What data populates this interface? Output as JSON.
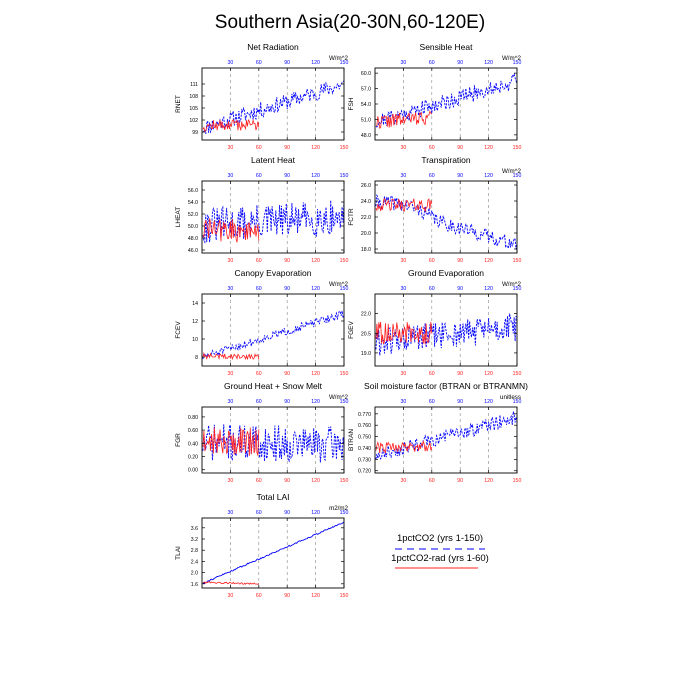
{
  "figure": {
    "title": "Southern Asia(20-30N,60-120E)",
    "colors": {
      "series1": "#0000ff",
      "series2": "#ff2020",
      "frame": "#000000",
      "grid": "#888888"
    }
  },
  "legend": {
    "entries": [
      {
        "label": "1pctCO2 (yrs 1-150)",
        "color": "#0000ff"
      },
      {
        "label": "1pctCO2-rad (yrs 1-60)",
        "color": "#ff2020"
      }
    ]
  },
  "chart_data": [
    {
      "type": "line",
      "title": "Net Radiation",
      "ylabel": "RNET",
      "units": "W/m^2",
      "xlim": [
        0,
        150
      ],
      "xticks": [
        30,
        60,
        90,
        120,
        150
      ],
      "ylim": [
        97,
        115
      ],
      "yticks": [
        99,
        102,
        105,
        108,
        111
      ],
      "ytick_labels": [
        "99",
        "102",
        "105",
        "108",
        "111"
      ],
      "series": [
        {
          "x_range": [
            1,
            150
          ],
          "trend": [
            100.0,
            111.0
          ],
          "amp": 2.0,
          "seed": 11,
          "dashed": true
        },
        {
          "x_range": [
            1,
            60
          ],
          "trend": [
            100.5,
            101.0
          ],
          "amp": 1.5,
          "seed": 12,
          "dashed": false
        }
      ]
    },
    {
      "type": "line",
      "title": "Sensible Heat",
      "ylabel": "FSH",
      "units": "W/m^2",
      "xlim": [
        0,
        150
      ],
      "xticks": [
        30,
        60,
        90,
        120,
        150
      ],
      "ylim": [
        47,
        61
      ],
      "yticks": [
        48,
        51,
        54,
        57,
        60
      ],
      "ytick_labels": [
        "48.0",
        "51.0",
        "54.0",
        "57.0",
        "60.0"
      ],
      "series": [
        {
          "x_range": [
            1,
            150
          ],
          "trend": [
            50.5,
            58.5
          ],
          "amp": 1.6,
          "seed": 21,
          "dashed": true
        },
        {
          "x_range": [
            1,
            60
          ],
          "trend": [
            50.5,
            51.5
          ],
          "amp": 1.4,
          "seed": 22,
          "dashed": false
        }
      ]
    },
    {
      "type": "line",
      "title": "Latent Heat",
      "ylabel": "LHEAT",
      "units": "",
      "xlim": [
        0,
        150
      ],
      "xticks": [
        30,
        60,
        90,
        120,
        150
      ],
      "ylim": [
        45.5,
        57.5
      ],
      "yticks": [
        46,
        48,
        50,
        52,
        54,
        56
      ],
      "ytick_labels": [
        "46.0",
        "48.0",
        "50.0",
        "52.0",
        "54.0",
        "56.0"
      ],
      "series": [
        {
          "x_range": [
            1,
            150
          ],
          "trend": [
            50.0,
            51.5
          ],
          "amp": 3.0,
          "seed": 31,
          "dashed": true
        },
        {
          "x_range": [
            1,
            60
          ],
          "trend": [
            49.5,
            49.0
          ],
          "amp": 2.0,
          "seed": 32,
          "dashed": false
        }
      ]
    },
    {
      "type": "line",
      "title": "Transpiration",
      "ylabel": "FCTR",
      "units": "W/m^2",
      "xlim": [
        0,
        150
      ],
      "xticks": [
        30,
        60,
        90,
        120,
        150
      ],
      "ylim": [
        17.5,
        26.5
      ],
      "yticks": [
        18,
        20,
        22,
        24,
        26
      ],
      "ytick_labels": [
        "18.0",
        "20.0",
        "22.0",
        "24.0",
        "26.0"
      ],
      "series": [
        {
          "x_range": [
            1,
            150
          ],
          "trend": [
            23.8,
            18.5
          ],
          "amp": 0.9,
          "seed": 41,
          "dashed": true,
          "hump": 0.8
        },
        {
          "x_range": [
            1,
            60
          ],
          "trend": [
            23.5,
            23.5
          ],
          "amp": 0.8,
          "seed": 42,
          "dashed": false
        }
      ]
    },
    {
      "type": "line",
      "title": "Canopy Evaporation",
      "ylabel": "FCEV",
      "units": "W/m^2",
      "xlim": [
        0,
        150
      ],
      "xticks": [
        30,
        60,
        90,
        120,
        150
      ],
      "ylim": [
        7,
        15
      ],
      "yticks": [
        8,
        10,
        12,
        14
      ],
      "ytick_labels": [
        "8",
        "10",
        "12",
        "14"
      ],
      "series": [
        {
          "x_range": [
            1,
            150
          ],
          "trend": [
            8.0,
            12.8
          ],
          "amp": 0.45,
          "seed": 51,
          "dashed": true
        },
        {
          "x_range": [
            1,
            60
          ],
          "trend": [
            8.1,
            8.0
          ],
          "amp": 0.3,
          "seed": 52,
          "dashed": false
        }
      ]
    },
    {
      "type": "line",
      "title": "Ground Evaporation",
      "ylabel": "FGEV",
      "units": "W/m^2",
      "xlim": [
        0,
        150
      ],
      "xticks": [
        30,
        60,
        90,
        120,
        150
      ],
      "ylim": [
        18,
        23.5
      ],
      "yticks": [
        19,
        20.5,
        22
      ],
      "ytick_labels": [
        "19.0",
        "20.5",
        "22.0"
      ],
      "series": [
        {
          "x_range": [
            1,
            150
          ],
          "trend": [
            19.8,
            21.0
          ],
          "amp": 1.1,
          "seed": 61,
          "dashed": true
        },
        {
          "x_range": [
            1,
            60
          ],
          "trend": [
            20.5,
            20.5
          ],
          "amp": 0.9,
          "seed": 62,
          "dashed": false
        }
      ]
    },
    {
      "type": "line",
      "title": "Ground Heat + Snow Melt",
      "ylabel": "FGR",
      "units": "W/m^2",
      "xlim": [
        0,
        150
      ],
      "xticks": [
        30,
        60,
        90,
        120,
        150
      ],
      "ylim": [
        -0.05,
        0.95
      ],
      "yticks": [
        0.0,
        0.2,
        0.4,
        0.6,
        0.8
      ],
      "ytick_labels": [
        "0.00",
        "0.20",
        "0.40",
        "0.60",
        "0.80"
      ],
      "series": [
        {
          "x_range": [
            1,
            150
          ],
          "trend": [
            0.42,
            0.38
          ],
          "amp": 0.28,
          "seed": 71,
          "dashed": true
        },
        {
          "x_range": [
            1,
            60
          ],
          "trend": [
            0.45,
            0.42
          ],
          "amp": 0.22,
          "seed": 72,
          "dashed": false
        }
      ]
    },
    {
      "type": "line",
      "title": "Soil moisture factor (BTRAN or BTRANMN)",
      "ylabel": "BTRAN",
      "units": "unitless",
      "xlim": [
        0,
        150
      ],
      "xticks": [
        30,
        60,
        90,
        120,
        150
      ],
      "ylim": [
        0.718,
        0.776
      ],
      "yticks": [
        0.72,
        0.73,
        0.74,
        0.75,
        0.76,
        0.77
      ],
      "ytick_labels": [
        "0.720",
        "0.730",
        "0.740",
        "0.750",
        "0.760",
        "0.770"
      ],
      "series": [
        {
          "x_range": [
            1,
            150
          ],
          "trend": [
            0.733,
            0.767
          ],
          "amp": 0.006,
          "seed": 81,
          "dashed": true
        },
        {
          "x_range": [
            1,
            60
          ],
          "trend": [
            0.74,
            0.742
          ],
          "amp": 0.005,
          "seed": 82,
          "dashed": false
        }
      ]
    },
    {
      "type": "line",
      "title": "Total LAI",
      "ylabel": "TLAI",
      "units": "m2/m2",
      "xlim": [
        0,
        150
      ],
      "xticks": [
        30,
        60,
        90,
        120,
        150
      ],
      "ylim": [
        1.45,
        3.95
      ],
      "yticks": [
        1.6,
        2.0,
        2.4,
        2.8,
        3.2,
        3.6
      ],
      "ytick_labels": [
        "1.6",
        "2.0",
        "2.4",
        "2.8",
        "3.2",
        "3.6"
      ],
      "series": [
        {
          "x_range": [
            1,
            150
          ],
          "trend": [
            1.62,
            3.8
          ],
          "amp": 0.025,
          "seed": 91,
          "dashed": false
        },
        {
          "x_range": [
            1,
            60
          ],
          "trend": [
            1.65,
            1.6
          ],
          "amp": 0.03,
          "seed": 92,
          "dashed": false
        }
      ]
    }
  ]
}
